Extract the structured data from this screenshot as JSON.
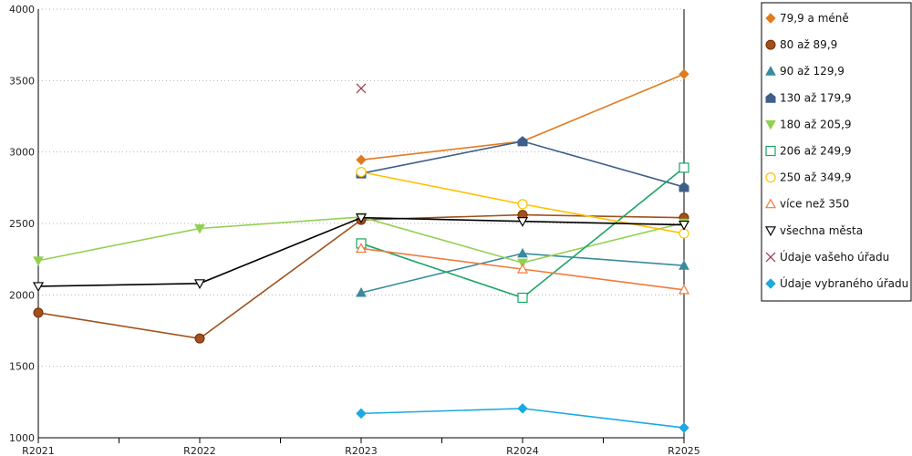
{
  "chart_data": {
    "type": "line",
    "categories": [
      "R2021",
      "R2022",
      "R2023",
      "R2024",
      "R2025"
    ],
    "ylim": [
      1000,
      4000
    ],
    "yticks": [
      1000,
      1500,
      2000,
      2500,
      3000,
      3500,
      4000
    ],
    "grid": true,
    "legend_position": "right",
    "series": [
      {
        "name": "79,9 a méně",
        "color": "#e07c1f",
        "marker": "diamond",
        "values": [
          null,
          null,
          2945,
          3075,
          3545
        ]
      },
      {
        "name": "80 až 89,9",
        "color": "#a0521e",
        "marker": "circle",
        "values": [
          1875,
          1695,
          2525,
          2560,
          2540
        ]
      },
      {
        "name": "90 až 129,9",
        "color": "#3a8a9e",
        "marker": "triangle",
        "values": [
          null,
          null,
          2015,
          2290,
          2205
        ]
      },
      {
        "name": "130 až 179,9",
        "color": "#3f5f8a",
        "marker": "house",
        "values": [
          null,
          null,
          2850,
          3075,
          2755
        ]
      },
      {
        "name": "180 až 205,9",
        "color": "#92d050",
        "marker": "triangle-down",
        "values": [
          2240,
          2465,
          2545,
          2225,
          2505
        ]
      },
      {
        "name": "206 až 249,9",
        "color": "#1aa563",
        "marker": "square-open",
        "values": [
          null,
          null,
          2360,
          1980,
          2890
        ]
      },
      {
        "name": "250 až 349,9",
        "color": "#ffc000",
        "marker": "circle-open",
        "values": [
          null,
          null,
          2860,
          2635,
          2430
        ]
      },
      {
        "name": "více než 350",
        "color": "#f07b3c",
        "marker": "triangle-open",
        "values": [
          null,
          null,
          2325,
          2180,
          2035
        ]
      },
      {
        "name": "všechna města",
        "color": "#000000",
        "marker": "triangle-down-open",
        "values": [
          2060,
          2080,
          2540,
          2515,
          2490
        ]
      },
      {
        "name": "Údaje vašeho úřadu",
        "color": "#9c3a4a",
        "marker": "x",
        "values": [
          null,
          null,
          3445,
          null,
          null
        ]
      },
      {
        "name": "Údaje vybraného úřadu",
        "color": "#1ba9e1",
        "marker": "diamond",
        "values": [
          null,
          null,
          1170,
          1205,
          1070
        ]
      }
    ]
  }
}
